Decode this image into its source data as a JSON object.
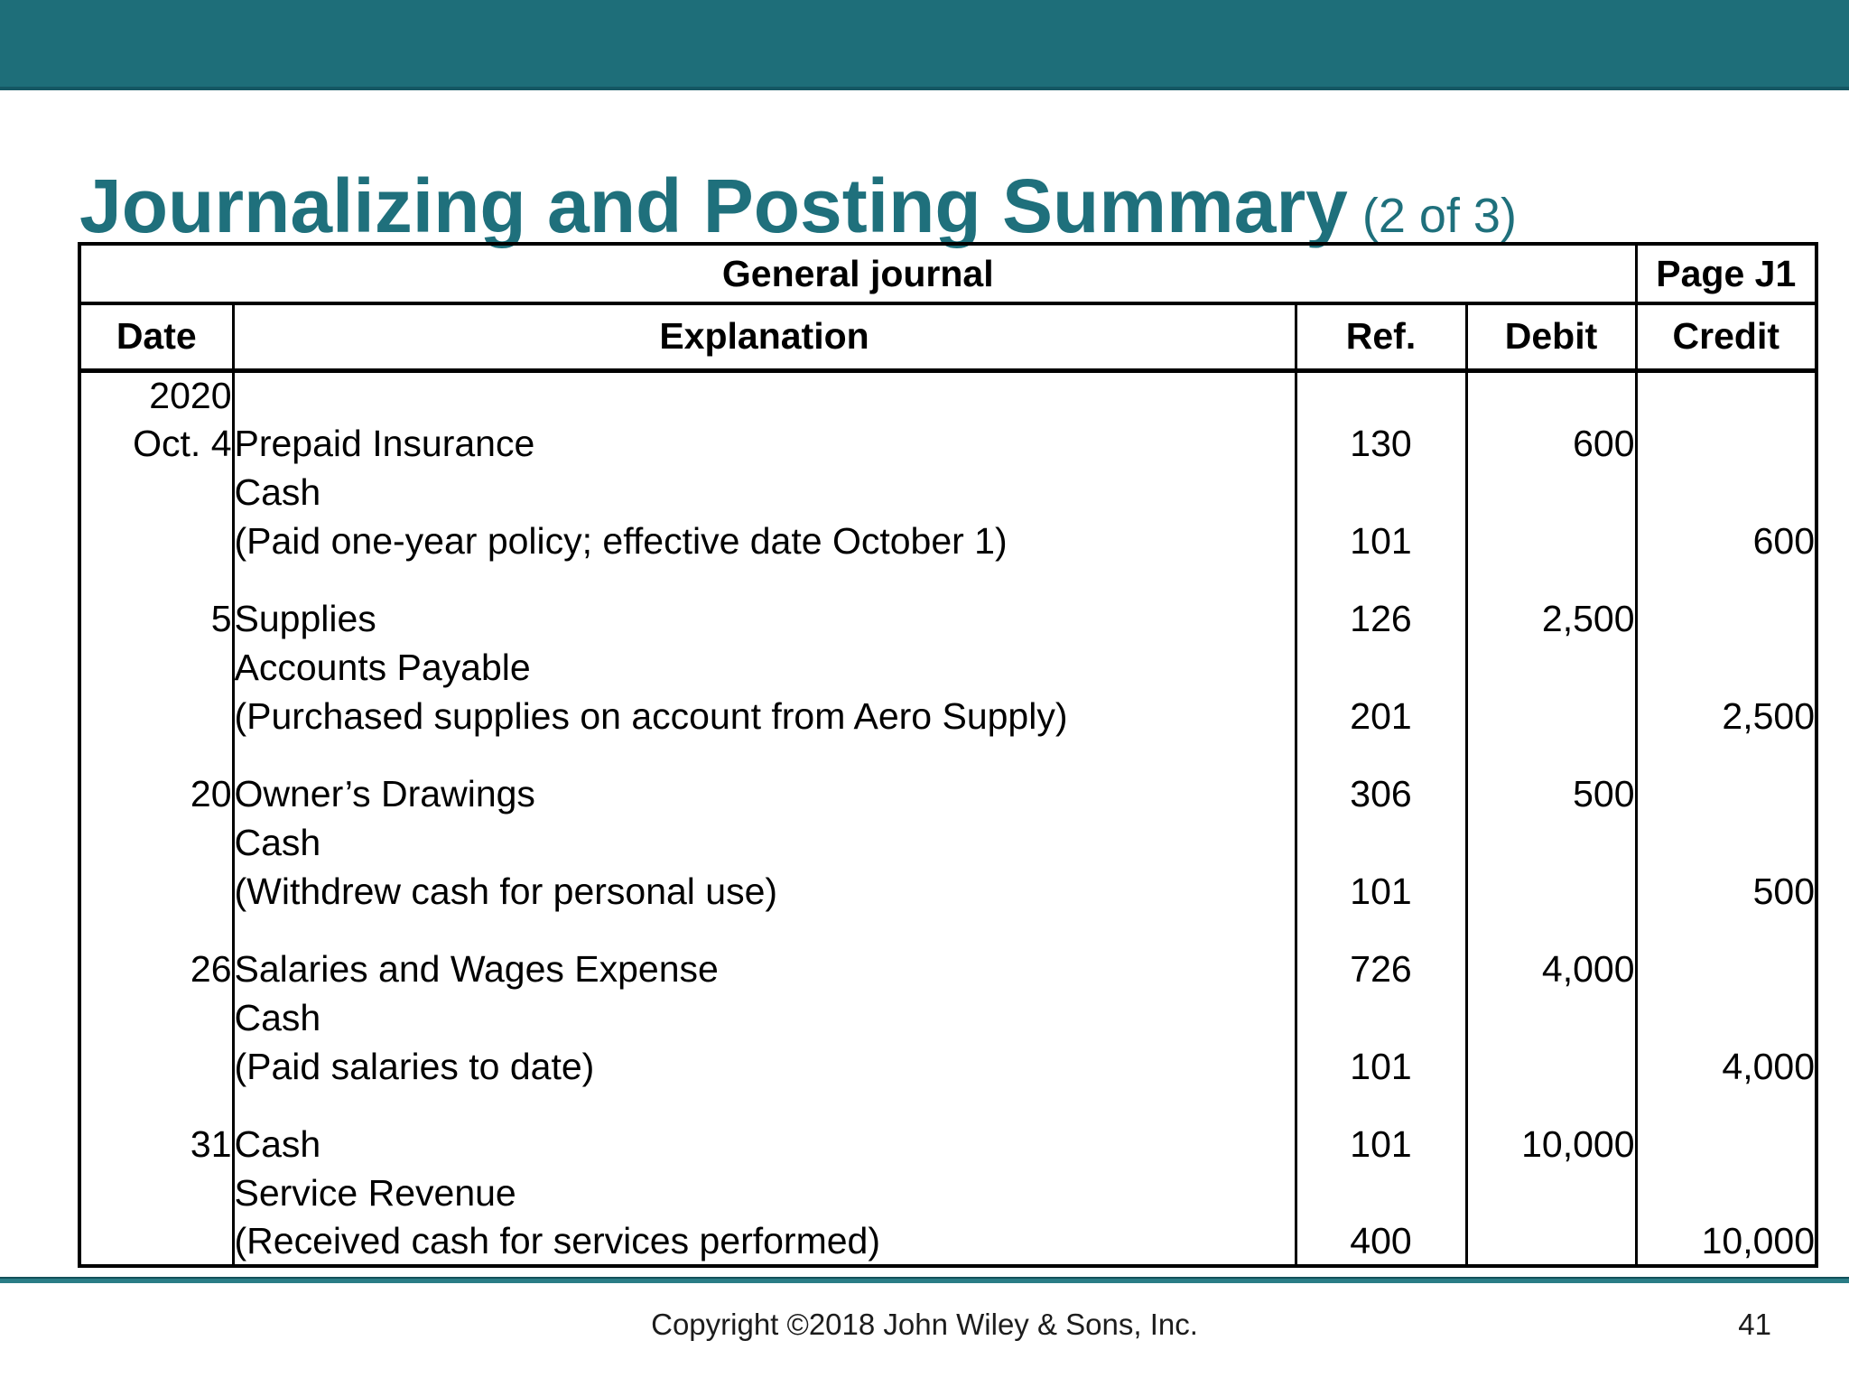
{
  "theme": {
    "banner": "#1e6e79",
    "banner-edge": "#155763",
    "title": "#1f707c",
    "rule": "#2a7d86",
    "rule-dark": "#14505a"
  },
  "slide": {
    "title": "Journalizing and Posting Summary",
    "title_suffix": "(2 of 3)",
    "footer": {
      "copyright": "Copyright ©2018 John Wiley & Sons, Inc.",
      "page_number": "41"
    }
  },
  "journal": {
    "title": "General journal",
    "page_label": "Page J1",
    "columns": [
      "Date",
      "Explanation",
      "Ref.",
      "Debit",
      "Credit"
    ],
    "year_label": "2020",
    "entries": [
      {
        "date": "Oct. 4",
        "lines": [
          {
            "text": "Prepaid Insurance",
            "indent": 0,
            "ref": "130",
            "debit": "600",
            "credit": ""
          },
          {
            "text": "Cash",
            "indent": 1,
            "ref": "",
            "debit": "",
            "credit": ""
          },
          {
            "text": "(Paid one-year policy; effective date October 1)",
            "indent": 2,
            "ref": "101",
            "debit": "",
            "credit": "600"
          }
        ]
      },
      {
        "date": "5",
        "lines": [
          {
            "text": "Supplies",
            "indent": 0,
            "ref": "126",
            "debit": "2,500",
            "credit": ""
          },
          {
            "text": "Accounts Payable",
            "indent": 1,
            "ref": "",
            "debit": "",
            "credit": ""
          },
          {
            "text": "(Purchased supplies on account from Aero Supply)",
            "indent": 2,
            "ref": "201",
            "debit": "",
            "credit": "2,500"
          }
        ]
      },
      {
        "date": "20",
        "lines": [
          {
            "text": "Owner’s Drawings",
            "indent": 0,
            "ref": "306",
            "debit": "500",
            "credit": ""
          },
          {
            "text": "Cash",
            "indent": 1,
            "ref": "",
            "debit": "",
            "credit": ""
          },
          {
            "text": "(Withdrew cash for personal use)",
            "indent": 2,
            "ref": "101",
            "debit": "",
            "credit": "500"
          }
        ]
      },
      {
        "date": "26",
        "lines": [
          {
            "text": "Salaries and Wages Expense",
            "indent": 0,
            "ref": "726",
            "debit": "4,000",
            "credit": ""
          },
          {
            "text": "Cash",
            "indent": 1,
            "ref": "",
            "debit": "",
            "credit": ""
          },
          {
            "text": "(Paid salaries to date)",
            "indent": 2,
            "ref": "101",
            "debit": "",
            "credit": "4,000"
          }
        ]
      },
      {
        "date": "31",
        "lines": [
          {
            "text": "Cash",
            "indent": 0,
            "ref": "101",
            "debit": "10,000",
            "credit": ""
          },
          {
            "text": "Service Revenue",
            "indent": 1,
            "ref": "",
            "debit": "",
            "credit": ""
          },
          {
            "text": "(Received cash for services performed)",
            "indent": 2,
            "ref": "400",
            "debit": "",
            "credit": "10,000"
          }
        ]
      }
    ]
  }
}
